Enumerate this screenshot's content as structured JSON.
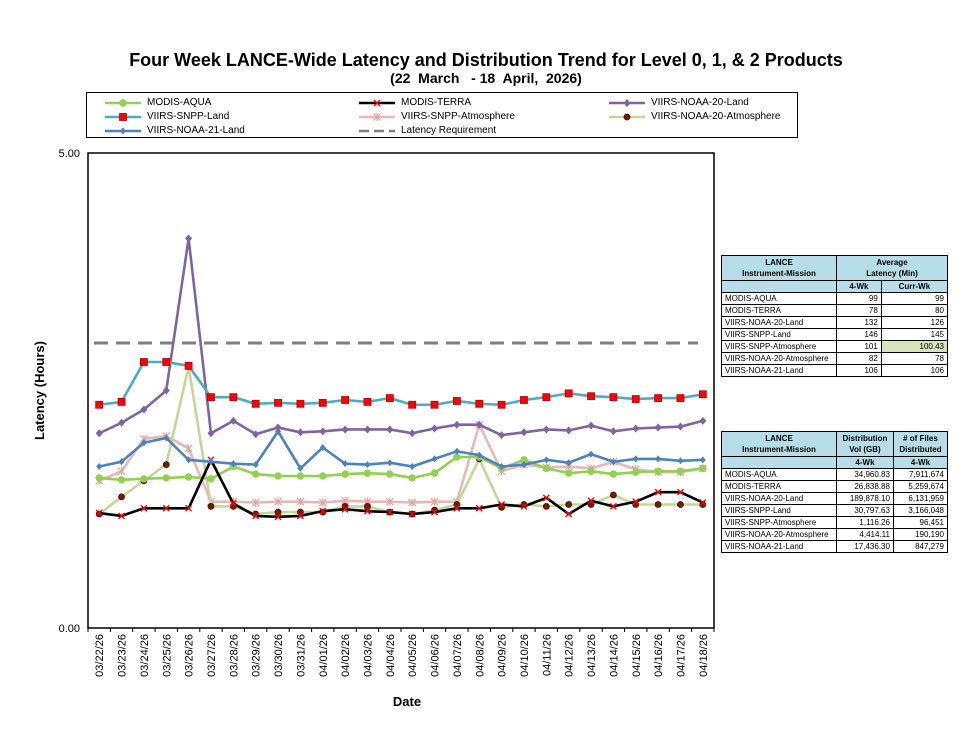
{
  "chart_data": {
    "type": "line",
    "title": "Four Week LANCE-Wide Latency and Distribution Trend for Level 0, 1, & 2 Products",
    "subtitle": "(22  March   - 18  April,  2026)",
    "xlabel": "Date",
    "ylabel": "Latency (Hours)",
    "ylim": [
      0,
      5
    ],
    "ytick_labels": [
      "0.00",
      "5.00"
    ],
    "grid": false,
    "legend_position": "top",
    "x": [
      "03/22/26",
      "03/23/26",
      "03/24/26",
      "03/25/26",
      "03/26/26",
      "03/27/26",
      "03/28/26",
      "03/29/26",
      "03/30/26",
      "03/31/26",
      "04/01/26",
      "04/02/26",
      "04/03/26",
      "04/04/26",
      "04/05/26",
      "04/06/26",
      "04/07/26",
      "04/08/26",
      "04/09/26",
      "04/10/26",
      "04/11/26",
      "04/12/26",
      "04/13/26",
      "04/14/26",
      "04/15/26",
      "04/16/26",
      "04/17/26",
      "04/18/26"
    ],
    "series": [
      {
        "name": "MODIS-AQUA",
        "color": "#92d050",
        "marker": "circle",
        "values": [
          1.58,
          1.56,
          1.57,
          1.58,
          1.59,
          1.57,
          1.7,
          1.62,
          1.6,
          1.6,
          1.6,
          1.62,
          1.63,
          1.62,
          1.58,
          1.63,
          1.8,
          1.8,
          1.68,
          1.77,
          1.68,
          1.63,
          1.65,
          1.62,
          1.64,
          1.65,
          1.65,
          1.68
        ]
      },
      {
        "name": "MODIS-TERRA",
        "color": "#000000",
        "marker": "x",
        "values": [
          1.21,
          1.18,
          1.26,
          1.26,
          1.26,
          1.77,
          1.31,
          1.18,
          1.17,
          1.18,
          1.23,
          1.25,
          1.23,
          1.22,
          1.2,
          1.22,
          1.26,
          1.26,
          1.3,
          1.28,
          1.37,
          1.2,
          1.34,
          1.28,
          1.33,
          1.43,
          1.43,
          1.32
        ]
      },
      {
        "name": "VIIRS-NOAA-20-Land",
        "color": "#8064a2",
        "marker": "diamond",
        "values": [
          2.05,
          2.16,
          2.3,
          2.5,
          4.1,
          2.05,
          2.18,
          2.04,
          2.11,
          2.06,
          2.07,
          2.09,
          2.09,
          2.09,
          2.05,
          2.1,
          2.14,
          2.14,
          2.03,
          2.06,
          2.09,
          2.08,
          2.13,
          2.07,
          2.1,
          2.11,
          2.12,
          2.18
        ]
      },
      {
        "name": "VIIRS-SNPP-Land",
        "color": "#4bacc6",
        "marker": "square",
        "values": [
          2.35,
          2.38,
          2.8,
          2.8,
          2.76,
          2.43,
          2.43,
          2.36,
          2.37,
          2.36,
          2.37,
          2.4,
          2.38,
          2.42,
          2.35,
          2.35,
          2.39,
          2.36,
          2.35,
          2.4,
          2.43,
          2.47,
          2.44,
          2.43,
          2.41,
          2.42,
          2.42,
          2.46
        ]
      },
      {
        "name": "VIIRS-SNPP-Atmosphere",
        "color": "#e6b9b8",
        "marker": "asterisk",
        "values": [
          1.55,
          1.65,
          1.99,
          2.02,
          1.89,
          1.33,
          1.33,
          1.32,
          1.33,
          1.33,
          1.32,
          1.34,
          1.33,
          1.33,
          1.32,
          1.33,
          1.33,
          2.14,
          1.65,
          1.72,
          1.69,
          1.7,
          1.68,
          1.75,
          1.67,
          1.64,
          1.64,
          1.68
        ]
      },
      {
        "name": "VIIRS-NOAA-20-Atmosphere",
        "color": "#c4d79b",
        "marker": "circle-dark",
        "values": [
          1.2,
          1.38,
          1.55,
          1.72,
          2.75,
          1.28,
          1.28,
          1.2,
          1.22,
          1.22,
          1.22,
          1.28,
          1.28,
          1.22,
          1.2,
          1.24,
          1.3,
          1.78,
          1.27,
          1.3,
          1.28,
          1.3,
          1.3,
          1.4,
          1.3,
          1.3,
          1.3,
          1.3
        ]
      },
      {
        "name": "VIIRS-NOAA-21-Land",
        "color": "#4f81bd",
        "marker": "diamond-blue",
        "values": [
          1.7,
          1.75,
          1.95,
          2.0,
          1.77,
          1.75,
          1.73,
          1.72,
          2.07,
          1.68,
          1.9,
          1.73,
          1.72,
          1.74,
          1.7,
          1.78,
          1.86,
          1.82,
          1.7,
          1.72,
          1.77,
          1.74,
          1.83,
          1.75,
          1.78,
          1.78,
          1.76,
          1.77
        ]
      },
      {
        "name": "Latency Requirement",
        "color": "#7f7f7f",
        "marker": "none",
        "dashed": true,
        "values": [
          3.0,
          3.0,
          3.0,
          3.0,
          3.0,
          3.0,
          3.0,
          3.0,
          3.0,
          3.0,
          3.0,
          3.0,
          3.0,
          3.0,
          3.0,
          3.0,
          3.0,
          3.0,
          3.0,
          3.0,
          3.0,
          3.0,
          3.0,
          3.0,
          3.0,
          3.0,
          3.0,
          3.0
        ]
      }
    ]
  },
  "legend_labels": [
    "MODIS-AQUA",
    "MODIS-TERRA",
    "VIIRS-NOAA-20-Land",
    "VIIRS-SNPP-Land",
    "VIIRS-SNPP-Atmosphere",
    "VIIRS-NOAA-20-Atmosphere",
    "VIIRS-NOAA-21-Land",
    "Latency Requirement"
  ],
  "latency_table": {
    "col1_header": "LANCE\nInstrument-Mission",
    "col2_header": "Average\nLatency (Min)",
    "sub_a": "4-Wk",
    "sub_b": "Curr-Wk",
    "rows": [
      {
        "name": "MODIS-AQUA",
        "wk4": "99",
        "curr": "99"
      },
      {
        "name": "MODIS-TERRA",
        "wk4": "78",
        "curr": "80"
      },
      {
        "name": "VIIRS-NOAA-20-Land",
        "wk4": "132",
        "curr": "126"
      },
      {
        "name": "VIIRS-SNPP-Land",
        "wk4": "146",
        "curr": "145"
      },
      {
        "name": "VIIRS-SNPP-Atmosphere",
        "wk4": "101",
        "curr": "100.43"
      },
      {
        "name": "VIIRS-NOAA-20-Atmosphere",
        "wk4": "82",
        "curr": "78"
      },
      {
        "name": "VIIRS-NOAA-21-Land",
        "wk4": "106",
        "curr": "106"
      }
    ]
  },
  "distribution_table": {
    "col1_header": "LANCE\nInstrument-Mission",
    "col2_header": "Distribution\nVol (GB)",
    "col3_header": "# of Files\nDistributed",
    "sub_a": "4-Wk",
    "sub_b": "4-Wk",
    "rows": [
      {
        "name": "MODIS-AQUA",
        "vol": "34,960.83",
        "files": "7,911,674"
      },
      {
        "name": "MODIS-TERRA",
        "vol": "26,838.88",
        "files": "5,259,674"
      },
      {
        "name": "VIIRS-NOAA-20-Land",
        "vol": "189,878.10",
        "files": "6,131,959"
      },
      {
        "name": "VIIRS-SNPP-Land",
        "vol": "30,797.63",
        "files": "3,166,048"
      },
      {
        "name": "VIIRS-SNPP-Atmosphere",
        "vol": "1,116.26",
        "files": "96,451"
      },
      {
        "name": "VIIRS-NOAA-20-Atmosphere",
        "vol": "4,414.11",
        "files": "190,190"
      },
      {
        "name": "VIIRS-NOAA-21-Land",
        "vol": "17,436.30",
        "files": "847,279"
      }
    ]
  }
}
